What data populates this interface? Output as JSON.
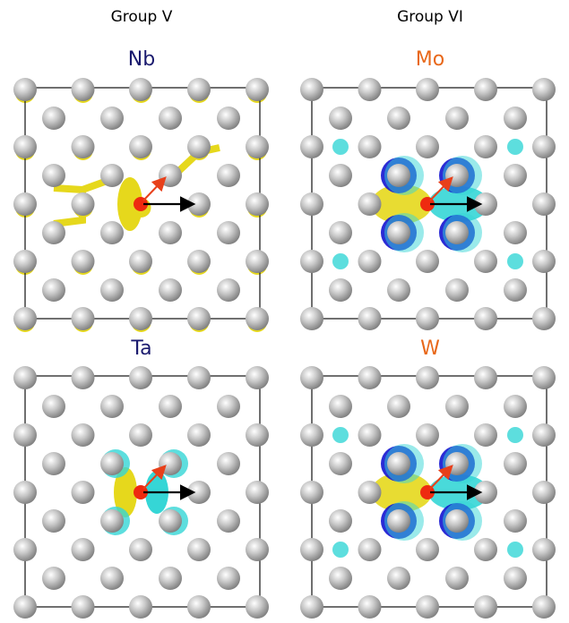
{
  "headers": [
    "Group V",
    "Group VI"
  ],
  "panels": [
    {
      "label": "Nb"
    },
    {
      "label": "Mo"
    },
    {
      "label": "Ta"
    },
    {
      "label": "W"
    }
  ]
}
